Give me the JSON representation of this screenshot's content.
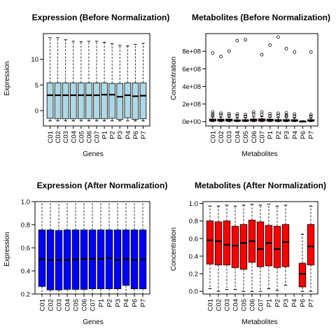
{
  "chart_data": [
    {
      "type": "boxplot",
      "title": "Expression (Before Normalization)",
      "xlabel": "Genes",
      "ylabel": "Expression",
      "ylim": [
        -3,
        15
      ],
      "yticks": [
        "0",
        "5",
        "10"
      ],
      "ytick_values": [
        0,
        5,
        10
      ],
      "box_color": "#add8e6",
      "categories": [
        "C01",
        "C02",
        "C03",
        "C04",
        "C05",
        "C06",
        "C07",
        "P1",
        "P2",
        "P3",
        "P4",
        "P6",
        "P7"
      ],
      "boxes": [
        {
          "min": -2.0,
          "q1": -1.5,
          "median": 3.0,
          "q3": 5.4,
          "max": 14.2
        },
        {
          "min": -2.0,
          "q1": -1.6,
          "median": 3.0,
          "q3": 5.4,
          "max": 14.2
        },
        {
          "min": -2.0,
          "q1": -1.6,
          "median": 3.0,
          "q3": 5.4,
          "max": 13.8
        },
        {
          "min": -2.0,
          "q1": -1.6,
          "median": 3.0,
          "q3": 5.4,
          "max": 13.5
        },
        {
          "min": -2.0,
          "q1": -1.6,
          "median": 3.0,
          "q3": 5.4,
          "max": 13.4
        },
        {
          "min": -2.0,
          "q1": -1.6,
          "median": 3.0,
          "q3": 5.4,
          "max": 13.5
        },
        {
          "min": -2.0,
          "q1": -1.6,
          "median": 3.0,
          "q3": 5.4,
          "max": 13.5
        },
        {
          "min": -2.0,
          "q1": -1.6,
          "median": 3.1,
          "q3": 5.4,
          "max": 13.3
        },
        {
          "min": -2.0,
          "q1": -1.5,
          "median": 3.1,
          "q3": 5.3,
          "max": 13.0
        },
        {
          "min": -2.0,
          "q1": -1.7,
          "median": 2.7,
          "q3": 5.3,
          "max": 12.7
        },
        {
          "min": -2.0,
          "q1": -1.4,
          "median": 3.0,
          "q3": 5.4,
          "max": 12.6
        },
        {
          "min": -2.0,
          "q1": -1.7,
          "median": 2.8,
          "q3": 5.4,
          "max": 12.9
        },
        {
          "min": -2.0,
          "q1": -1.6,
          "median": 2.9,
          "q3": 5.4,
          "max": 13.1
        }
      ]
    },
    {
      "type": "boxplot",
      "title": "Metabolites (Before Normalization)",
      "xlabel": "Metabolites",
      "ylabel": "Concentration",
      "ylim": [
        -50000000,
        1000000000
      ],
      "yticks": [
        "0e+00",
        "2e+08",
        "4e+08",
        "6e+08",
        "8e+08"
      ],
      "ytick_values": [
        0,
        200000000,
        400000000,
        600000000,
        800000000
      ],
      "box_color": "#ff0000",
      "categories": [
        "C01",
        "C02",
        "C03",
        "C04",
        "C05",
        "C06",
        "C07",
        "P1",
        "P2",
        "P3",
        "P4",
        "P6",
        "P7"
      ],
      "boxes": [
        {
          "min": 0,
          "q1": 5000000,
          "median": 18000000,
          "q3": 30000000,
          "max": 55000000
        },
        {
          "min": 0,
          "q1": 5000000,
          "median": 17000000,
          "q3": 28000000,
          "max": 50000000
        },
        {
          "min": 0,
          "q1": 5000000,
          "median": 17000000,
          "q3": 29000000,
          "max": 52000000
        },
        {
          "min": 0,
          "q1": 4000000,
          "median": 12000000,
          "q3": 20000000,
          "max": 40000000
        },
        {
          "min": 0,
          "q1": 4000000,
          "median": 13000000,
          "q3": 22000000,
          "max": 42000000
        },
        {
          "min": 0,
          "q1": 5000000,
          "median": 18000000,
          "q3": 30000000,
          "max": 55000000
        },
        {
          "min": 0,
          "q1": 5000000,
          "median": 19000000,
          "q3": 32000000,
          "max": 58000000
        },
        {
          "min": 0,
          "q1": 5000000,
          "median": 17000000,
          "q3": 28000000,
          "max": 50000000
        },
        {
          "min": 0,
          "q1": 4000000,
          "median": 13000000,
          "q3": 23000000,
          "max": 45000000
        },
        {
          "min": 0,
          "q1": 4000000,
          "median": 13000000,
          "q3": 23000000,
          "max": 45000000
        },
        {
          "min": 0,
          "q1": 4000000,
          "median": 12000000,
          "q3": 22000000,
          "max": 42000000
        },
        {
          "min": 0,
          "q1": 1000000,
          "median": 3000000,
          "q3": 6000000,
          "max": 10000000
        },
        {
          "min": 0,
          "q1": 4000000,
          "median": 13000000,
          "q3": 22000000,
          "max": 40000000
        }
      ],
      "outliers": [
        [
          780000000,
          110000000,
          85000000,
          65000000
        ],
        [
          740000000,
          95000000,
          75000000
        ],
        [
          800000000,
          90000000,
          70000000
        ],
        [
          920000000,
          85000000,
          65000000
        ],
        [
          930000000,
          80000000,
          60000000
        ],
        [
          110000000,
          85000000
        ],
        [
          760000000,
          110000000,
          80000000
        ],
        [
          870000000,
          90000000,
          65000000
        ],
        [
          960000000,
          95000000,
          70000000
        ],
        [
          830000000,
          100000000,
          75000000,
          60000000
        ],
        [
          790000000,
          85000000,
          62000000
        ],
        [],
        [
          790000000,
          80000000,
          60000000
        ]
      ]
    },
    {
      "type": "boxplot",
      "title": "Expression (After Normalization)",
      "xlabel": "Genes",
      "ylabel": "Expression",
      "ylim": [
        0.2,
        1.0
      ],
      "yticks": [
        "0.2",
        "0.4",
        "0.6",
        "0.8",
        "1.0"
      ],
      "ytick_values": [
        0.2,
        0.4,
        0.6,
        0.8,
        1.0
      ],
      "box_color": "#0000ff",
      "categories": [
        "C01",
        "C02",
        "C03",
        "C04",
        "C05",
        "C06",
        "C07",
        "P1",
        "P2",
        "P3",
        "P4",
        "P6",
        "P7"
      ],
      "boxes": [
        {
          "min": 0.2,
          "q1": 0.265,
          "median": 0.5,
          "q3": 0.755,
          "max": 1.0
        },
        {
          "min": 0.2,
          "q1": 0.235,
          "median": 0.495,
          "q3": 0.755,
          "max": 1.0
        },
        {
          "min": 0.2,
          "q1": 0.235,
          "median": 0.495,
          "q3": 0.75,
          "max": 1.0
        },
        {
          "min": 0.2,
          "q1": 0.24,
          "median": 0.495,
          "q3": 0.755,
          "max": 1.0
        },
        {
          "min": 0.2,
          "q1": 0.24,
          "median": 0.5,
          "q3": 0.755,
          "max": 1.0
        },
        {
          "min": 0.2,
          "q1": 0.24,
          "median": 0.505,
          "q3": 0.755,
          "max": 1.0
        },
        {
          "min": 0.2,
          "q1": 0.245,
          "median": 0.505,
          "q3": 0.755,
          "max": 1.0
        },
        {
          "min": 0.2,
          "q1": 0.245,
          "median": 0.505,
          "q3": 0.755,
          "max": 1.0
        },
        {
          "min": 0.2,
          "q1": 0.245,
          "median": 0.51,
          "q3": 0.755,
          "max": 1.0
        },
        {
          "min": 0.2,
          "q1": 0.245,
          "median": 0.495,
          "q3": 0.755,
          "max": 1.0
        },
        {
          "min": 0.2,
          "q1": 0.275,
          "median": 0.505,
          "q3": 0.755,
          "max": 1.0
        },
        {
          "min": 0.2,
          "q1": 0.245,
          "median": 0.495,
          "q3": 0.755,
          "max": 1.0
        },
        {
          "min": 0.2,
          "q1": 0.245,
          "median": 0.5,
          "q3": 0.755,
          "max": 1.0
        }
      ]
    },
    {
      "type": "boxplot",
      "title": "Metabolites (After Normalization)",
      "xlabel": "Metabolites",
      "ylabel": "Concentration",
      "ylim": [
        -0.03,
        1.02
      ],
      "yticks": [
        "0.0",
        "0.2",
        "0.4",
        "0.6",
        "0.8",
        "1.0"
      ],
      "ytick_values": [
        0.0,
        0.2,
        0.4,
        0.6,
        0.8,
        1.0
      ],
      "box_color": "#ff0000",
      "categories": [
        "C01",
        "C02",
        "C03",
        "C04",
        "C05",
        "C06",
        "C07",
        "P1",
        "P2",
        "P3",
        "P4",
        "P6",
        "P7"
      ],
      "boxes": [
        {
          "min": 0.03,
          "q1": 0.31,
          "median": 0.58,
          "q3": 0.8,
          "max": 0.97
        },
        {
          "min": 0.0,
          "q1": 0.3,
          "median": 0.57,
          "q3": 0.79,
          "max": 0.97
        },
        {
          "min": 0.02,
          "q1": 0.3,
          "median": 0.53,
          "q3": 0.8,
          "max": 0.98
        },
        {
          "min": 0.02,
          "q1": 0.27,
          "median": 0.52,
          "q3": 0.74,
          "max": 0.97
        },
        {
          "min": 0.0,
          "q1": 0.25,
          "median": 0.55,
          "q3": 0.76,
          "max": 0.98
        },
        {
          "min": 0.0,
          "q1": 0.33,
          "median": 0.57,
          "q3": 0.81,
          "max": 0.99
        },
        {
          "min": 0.0,
          "q1": 0.28,
          "median": 0.48,
          "q3": 0.79,
          "max": 0.98
        },
        {
          "min": 0.03,
          "q1": 0.29,
          "median": 0.55,
          "q3": 0.75,
          "max": 0.99
        },
        {
          "min": 0.01,
          "q1": 0.27,
          "median": 0.48,
          "q3": 0.74,
          "max": 0.97
        },
        {
          "min": 0.07,
          "q1": 0.28,
          "median": 0.56,
          "q3": 0.76,
          "max": 0.98
        },
        {
          "min": 0.0,
          "q1": 0.05,
          "median": 0.2,
          "q3": 0.32,
          "max": 0.65
        },
        {
          "min": 0.0,
          "q1": 0.3,
          "median": 0.51,
          "q3": 0.76,
          "max": 0.97
        }
      ],
      "box_categories": [
        "C01",
        "C02",
        "C03",
        "C04",
        "C05",
        "C06",
        "C07",
        "P1",
        "P2",
        "P3",
        "P6",
        "P7"
      ]
    }
  ]
}
